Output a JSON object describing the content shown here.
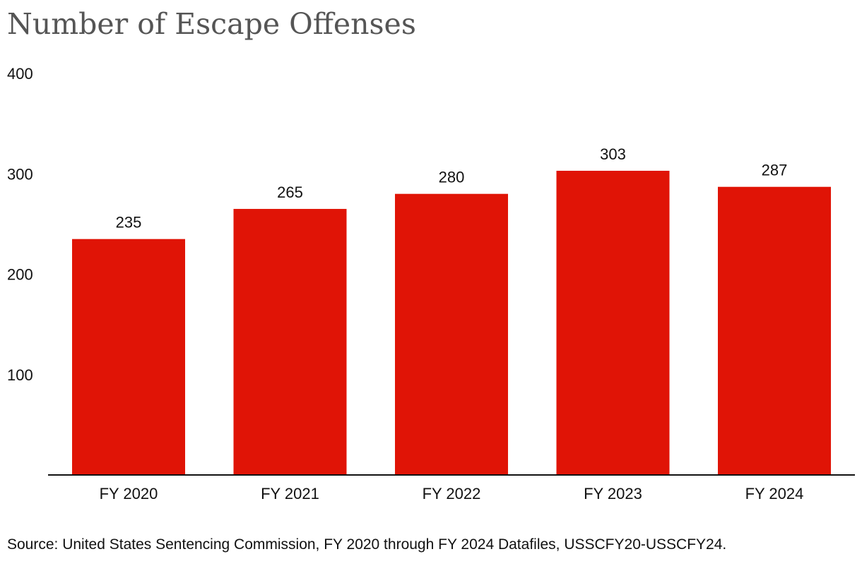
{
  "chart_data": {
    "type": "bar",
    "title": "Number of Escape Offenses",
    "categories": [
      "FY 2020",
      "FY 2021",
      "FY 2022",
      "FY 2023",
      "FY 2024"
    ],
    "values": [
      235,
      265,
      280,
      303,
      287
    ],
    "value_labels": [
      "235",
      "265",
      "280",
      "303",
      "287"
    ],
    "yticks": [
      100,
      200,
      300,
      400
    ],
    "ytick_labels": [
      "100",
      "200",
      "300",
      "400"
    ],
    "ylim": [
      0,
      400
    ],
    "xlabel": "",
    "ylabel": "",
    "bar_color": "#e01406",
    "grid": false,
    "source": "Source: United States Sentencing Commission, FY 2020 through FY 2024 Datafiles, USSCFY20-USSCFY24."
  }
}
